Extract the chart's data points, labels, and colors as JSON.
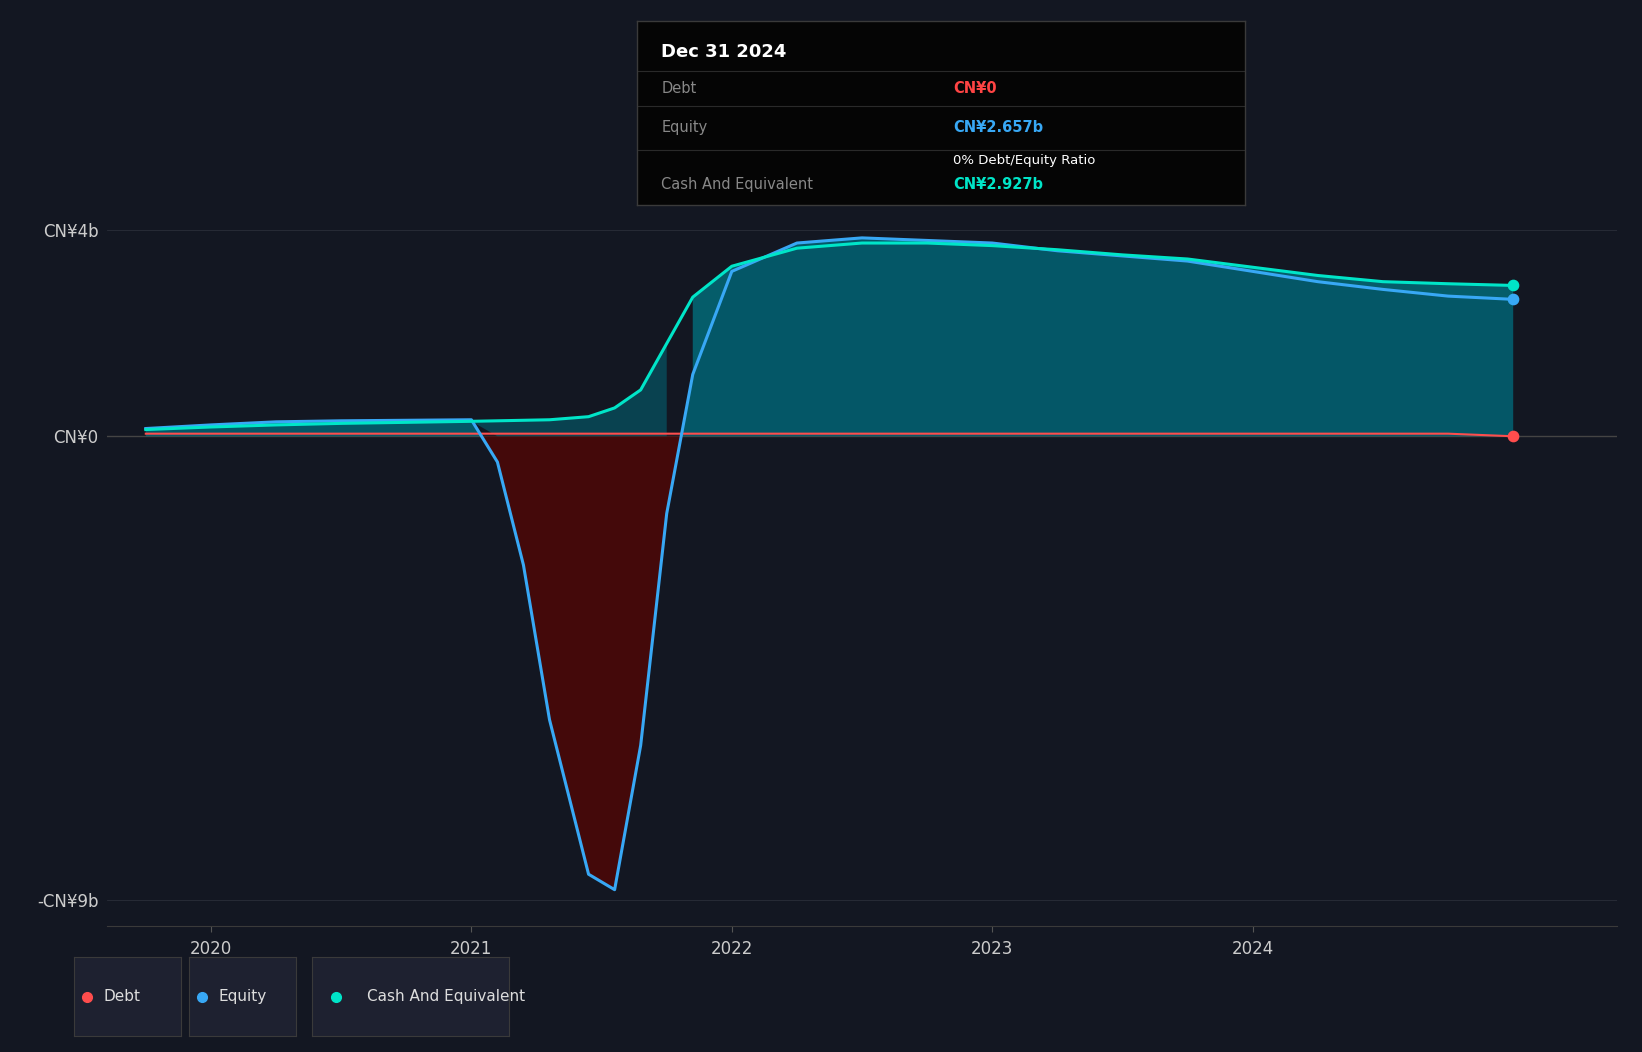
{
  "bg_color": "#131722",
  "plot_bg_color": "#131722",
  "grid_color": "#2a2e39",
  "title_box": {
    "date": "Dec 31 2024",
    "debt_label": "Debt",
    "debt_value": "CN¥0",
    "debt_color": "#ff4444",
    "equity_label": "Equity",
    "equity_value": "CN¥2.657b",
    "equity_color": "#38a8f5",
    "ratio_text": "0% Debt/Equity Ratio",
    "ratio_color": "#ffffff",
    "cash_label": "Cash And Equivalent",
    "cash_value": "CN¥2.927b",
    "cash_color": "#00e5c8",
    "label_color": "#888888",
    "box_bg": "#050505",
    "box_border": "#3a3a3a"
  },
  "ylim": [
    -9500000000.0,
    5200000000.0
  ],
  "ytick_values": [
    -9000000000.0,
    0,
    4000000000.0
  ],
  "ytick_labels": [
    "-CN¥9b",
    "CN¥0",
    "CN¥4b"
  ],
  "xlim_start": 2019.6,
  "xlim_end": 2025.4,
  "xtick_values": [
    2020,
    2021,
    2022,
    2023,
    2024
  ],
  "xtick_labels": [
    "2020",
    "2021",
    "2022",
    "2023",
    "2024"
  ],
  "debt_color": "#ff4d4d",
  "equity_color": "#38a8f5",
  "cash_color": "#00e5c8",
  "fill_positive_color": "#006e7f",
  "fill_negative_color": "#4a0808",
  "fill_cash_equity_color": "#007b8a",
  "legend_labels": [
    "Debt",
    "Equity",
    "Cash And Equivalent"
  ],
  "legend_colors": [
    "#ff4d4d",
    "#38a8f5",
    "#00e5c8"
  ],
  "time_points": [
    2019.75,
    2020.0,
    2020.25,
    2020.5,
    2020.75,
    2021.0,
    2021.1,
    2021.2,
    2021.3,
    2021.45,
    2021.55,
    2021.65,
    2021.75,
    2021.85,
    2022.0,
    2022.25,
    2022.5,
    2022.75,
    2023.0,
    2023.25,
    2023.5,
    2023.75,
    2024.0,
    2024.25,
    2024.5,
    2024.75,
    2025.0
  ],
  "equity_values": [
    150000000.0,
    220000000.0,
    280000000.0,
    300000000.0,
    310000000.0,
    320000000.0,
    -500000000.0,
    -2500000000.0,
    -5500000000.0,
    -8500000000.0,
    -8800000000.0,
    -6000000000.0,
    -1500000000.0,
    1200000000.0,
    3200000000.0,
    3750000000.0,
    3850000000.0,
    3800000000.0,
    3750000000.0,
    3600000000.0,
    3500000000.0,
    3400000000.0,
    3200000000.0,
    3000000000.0,
    2850000000.0,
    2720000000.0,
    2657000000.0
  ],
  "debt_values": [
    50000000.0,
    50000000.0,
    50000000.0,
    50000000.0,
    50000000.0,
    50000000.0,
    50000000.0,
    50000000.0,
    50000000.0,
    50000000.0,
    50000000.0,
    50000000.0,
    50000000.0,
    50000000.0,
    50000000.0,
    50000000.0,
    50000000.0,
    50000000.0,
    50000000.0,
    50000000.0,
    50000000.0,
    50000000.0,
    50000000.0,
    50000000.0,
    50000000.0,
    50000000.0,
    0
  ],
  "cash_values": [
    130000000.0,
    180000000.0,
    220000000.0,
    250000000.0,
    270000000.0,
    290000000.0,
    300000000.0,
    310000000.0,
    320000000.0,
    380000000.0,
    550000000.0,
    900000000.0,
    1800000000.0,
    2700000000.0,
    3300000000.0,
    3650000000.0,
    3750000000.0,
    3750000000.0,
    3700000000.0,
    3620000000.0,
    3520000000.0,
    3440000000.0,
    3280000000.0,
    3120000000.0,
    3000000000.0,
    2960000000.0,
    2927000000.0
  ]
}
